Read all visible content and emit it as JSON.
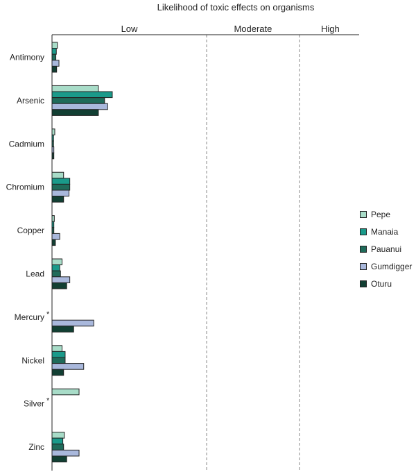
{
  "chart_data": {
    "type": "bar",
    "orientation": "horizontal",
    "title": "Likelihood of toxic effects on organisms",
    "bands": [
      {
        "label": "Low",
        "range": [
          0,
          1
        ]
      },
      {
        "label": "Moderate",
        "range": [
          1,
          1.6
        ]
      },
      {
        "label": "High",
        "range": [
          1.6,
          2
        ]
      }
    ],
    "categories": [
      {
        "label": "Antimony",
        "note": ""
      },
      {
        "label": "Arsenic",
        "note": ""
      },
      {
        "label": "Cadmium",
        "note": ""
      },
      {
        "label": "Chromium",
        "note": ""
      },
      {
        "label": "Copper",
        "note": ""
      },
      {
        "label": "Lead",
        "note": ""
      },
      {
        "label": "Mercury",
        "note": "*"
      },
      {
        "label": "Nickel",
        "note": ""
      },
      {
        "label": "Silver",
        "note": "*"
      },
      {
        "label": "Zinc",
        "note": ""
      }
    ],
    "series": [
      {
        "name": "Pepe",
        "color": "#a8dcc8",
        "values": [
          0.035,
          0.3,
          0.018,
          0.075,
          0.015,
          0.065,
          null,
          0.065,
          0.175,
          0.08
        ]
      },
      {
        "name": "Manaia",
        "color": "#1a9a8a",
        "values": [
          0.028,
          0.39,
          0.01,
          0.115,
          0.012,
          0.05,
          null,
          0.085,
          null,
          0.07
        ]
      },
      {
        "name": "Pauanui",
        "color": "#1f6b5a",
        "values": [
          0.025,
          0.34,
          0.01,
          0.115,
          0.012,
          0.055,
          null,
          0.085,
          null,
          0.075
        ]
      },
      {
        "name": "Gumdigger",
        "color": "#a9b8dc",
        "values": [
          0.045,
          0.36,
          0.012,
          0.11,
          0.05,
          0.115,
          0.27,
          0.205,
          null,
          0.175
        ]
      },
      {
        "name": "Oturu",
        "color": "#123f33",
        "values": [
          0.03,
          0.3,
          0.012,
          0.075,
          0.022,
          0.095,
          0.14,
          0.075,
          null,
          0.095
        ]
      }
    ],
    "xlim": [
      0,
      2
    ],
    "legend_position": "right",
    "grid": false
  }
}
